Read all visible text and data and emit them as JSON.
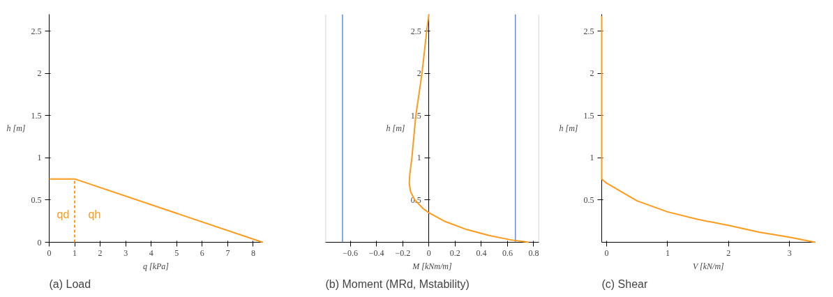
{
  "chart_data": [
    {
      "type": "line",
      "title": "(a) Load",
      "xlabel": "q [kPa]",
      "ylabel": "h [m]",
      "xlim": [
        0,
        8.37
      ],
      "ylim": [
        0,
        2.7
      ],
      "xticks": [
        0,
        1,
        2,
        3,
        4,
        5,
        6,
        7,
        8
      ],
      "yticks": [
        0,
        0.5,
        1,
        1.5,
        2,
        2.5
      ],
      "grid": false,
      "series": [
        {
          "color": "#ff9a1a",
          "x": [
            0,
            1,
            8.37
          ],
          "values": [
            0.75,
            0.75,
            0
          ],
          "line_style": "solid"
        },
        {
          "color": "#ff9a1a",
          "x": [
            1,
            1
          ],
          "values": [
            0,
            0.75
          ],
          "line_style": "dashed"
        }
      ],
      "annotations": [
        "qd",
        "qh"
      ]
    },
    {
      "type": "line",
      "title": "(b) Moment (MRd, Mstability)",
      "xlabel": "M [kNm/m]",
      "ylabel": "h [m]",
      "xlim": [
        -0.79,
        0.84
      ],
      "ylim": [
        0,
        2.7
      ],
      "xticks": [
        -0.6,
        -0.4,
        -0.2,
        0,
        0.2,
        0.4,
        0.6,
        0.8
      ],
      "yticks": [
        0.5,
        1,
        1.5,
        2,
        2.5
      ],
      "grid": false,
      "series": [
        {
          "color": "#ff9a1a",
          "x": [
            0,
            -0.017,
            -0.053,
            -0.1,
            -0.13,
            -0.146,
            -0.15,
            -0.14,
            -0.107,
            -0.045,
            0,
            0.118,
            0.29,
            0.46,
            0.62,
            0.764
          ],
          "values": [
            2.7,
            2.5,
            2,
            1.5,
            1,
            0.8,
            0.7,
            0.6,
            0.5,
            0.4,
            0.35,
            0.25,
            0.15,
            0.08,
            0.03,
            0
          ],
          "line_style": "solid"
        }
      ],
      "ref_lines": [
        {
          "axis": "x",
          "value": -0.66,
          "color": "#5b8fe8"
        },
        {
          "axis": "x",
          "value": 0.66,
          "color": "#5b8fe8"
        },
        {
          "axis": "x",
          "value": -0.79,
          "color": "#c8c8c8"
        },
        {
          "axis": "x",
          "value": 0.84,
          "color": "#c8c8c8"
        }
      ]
    },
    {
      "type": "line",
      "title": "(c) Shear",
      "xlabel": "V [kN/m]",
      "ylabel": "h [m]",
      "xlim": [
        -0.08,
        3.42
      ],
      "ylim": [
        0,
        2.7
      ],
      "xticks": [
        0,
        1,
        2,
        3
      ],
      "yticks": [
        0.5,
        1,
        1.5,
        2,
        2.5
      ],
      "grid": false,
      "series": [
        {
          "color": "#ff9a1a",
          "x": [
            -0.08,
            -0.08,
            0,
            0.24,
            0.5,
            1,
            1.5,
            2,
            2.5,
            3,
            3.42
          ],
          "values": [
            2.68,
            0.75,
            0.7,
            0.6,
            0.49,
            0.36,
            0.27,
            0.2,
            0.12,
            0.06,
            0
          ],
          "line_style": "solid"
        }
      ]
    }
  ]
}
